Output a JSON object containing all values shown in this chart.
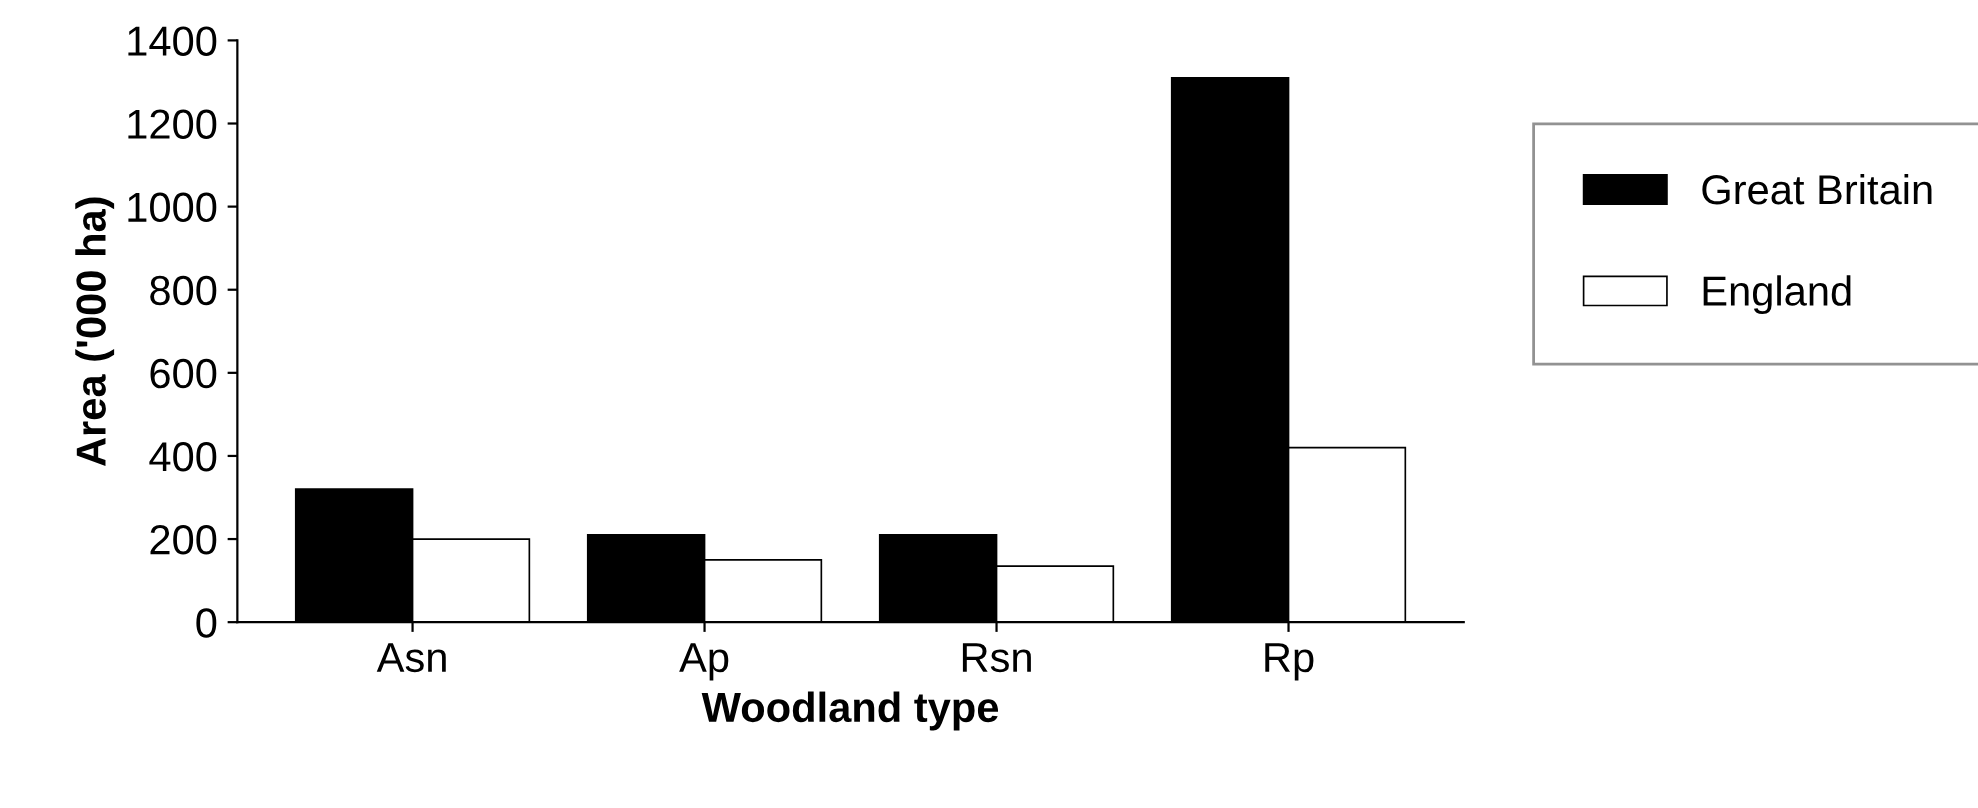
{
  "chart_data": {
    "type": "bar",
    "xlabel": "Woodland type",
    "ylabel": "Area ('000 ha)",
    "categories": [
      "Asn",
      "Ap",
      "Rsn",
      "Rp"
    ],
    "series": [
      {
        "name": "Great Britain",
        "color": "#000000",
        "values": [
          320,
          210,
          210,
          1310
        ]
      },
      {
        "name": "England",
        "color": "#ffffff",
        "values": [
          200,
          150,
          135,
          420
        ]
      }
    ],
    "ylim": [
      0,
      1400
    ],
    "yticks": [
      0,
      200,
      400,
      600,
      800,
      1000,
      1200,
      1400
    ],
    "grid": false,
    "legend": "right"
  }
}
